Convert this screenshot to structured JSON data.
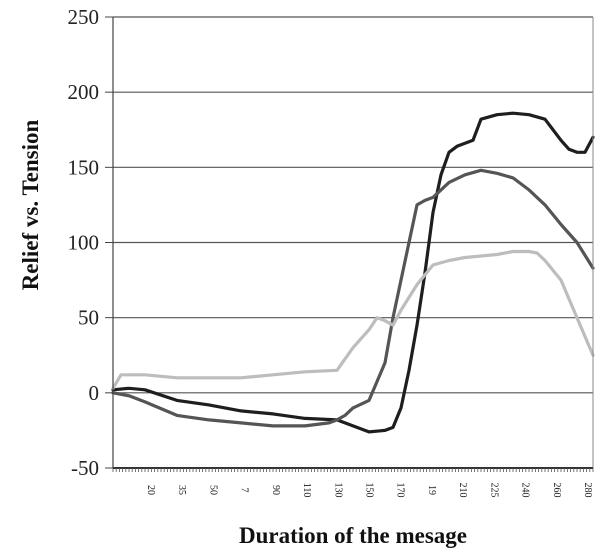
{
  "chart_data": {
    "type": "line",
    "title": "",
    "xlabel": "Duration of the mesage",
    "ylabel": "Relief vs. Tension",
    "ylim": [
      -50,
      250
    ],
    "yticks": [
      "250",
      "200",
      "150",
      "100",
      "50",
      "0",
      "-50"
    ],
    "xlim": [
      0,
      300
    ],
    "xtick_labels": [
      "20",
      "35",
      "50",
      "7",
      "90",
      "110",
      "130",
      "150",
      "170",
      "19",
      "210",
      "225",
      "240",
      "260",
      "280"
    ],
    "grid": true,
    "series": [
      {
        "color": "#1e1e1e",
        "x": [
          0,
          10,
          20,
          40,
          60,
          80,
          100,
          120,
          140,
          150,
          160,
          170,
          175,
          180,
          185,
          190,
          195,
          200,
          205,
          210,
          215,
          220,
          225,
          230,
          240,
          250,
          260,
          270,
          280,
          285,
          290,
          295,
          300
        ],
        "y": [
          2,
          3,
          2,
          -5,
          -8,
          -12,
          -14,
          -17,
          -18,
          -22,
          -26,
          -25,
          -23,
          -10,
          15,
          45,
          80,
          120,
          145,
          160,
          164,
          166,
          168,
          182,
          185,
          186,
          185,
          182,
          168,
          162,
          160,
          160,
          170
        ]
      },
      {
        "color": "#555555",
        "x": [
          0,
          10,
          20,
          40,
          60,
          80,
          100,
          120,
          135,
          140,
          145,
          150,
          160,
          170,
          175,
          180,
          185,
          190,
          195,
          200,
          210,
          220,
          230,
          240,
          250,
          260,
          270,
          280,
          290,
          300
        ],
        "y": [
          0,
          -2,
          -6,
          -15,
          -18,
          -20,
          -22,
          -22,
          -20,
          -18,
          -15,
          -10,
          -5,
          20,
          50,
          75,
          100,
          125,
          128,
          130,
          140,
          145,
          148,
          146,
          143,
          135,
          125,
          112,
          100,
          83
        ]
      },
      {
        "color": "#bdbdbd",
        "x": [
          0,
          5,
          20,
          40,
          60,
          80,
          100,
          120,
          140,
          150,
          160,
          165,
          170,
          175,
          180,
          190,
          200,
          210,
          220,
          240,
          250,
          260,
          265,
          270,
          280,
          290,
          300
        ],
        "y": [
          3,
          12,
          12,
          10,
          10,
          10,
          12,
          14,
          15,
          30,
          42,
          50,
          48,
          45,
          55,
          72,
          85,
          88,
          90,
          92,
          94,
          94,
          93,
          88,
          75,
          50,
          25
        ]
      }
    ]
  }
}
